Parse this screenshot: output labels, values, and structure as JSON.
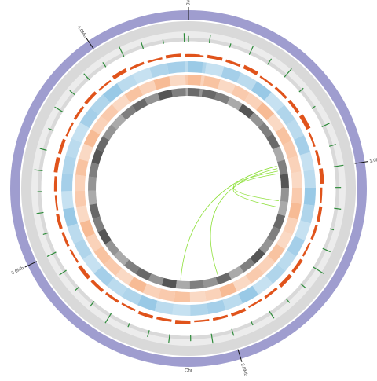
{
  "chart_data": {
    "type": "circos",
    "chromosome_label": "Chr",
    "xlim": [
      0,
      4.42
    ],
    "xticks": [
      {
        "value": 0,
        "label": "0Mb"
      },
      {
        "value": 1,
        "label": "1.0Mb"
      },
      {
        "value": 2,
        "label": "2.0Mb"
      },
      {
        "value": 3,
        "label": "3.0Mb"
      },
      {
        "value": 4,
        "label": "4.0Mb"
      }
    ],
    "ring_color": "#9f9dcf",
    "ylim": [
      0,
      1
    ],
    "x": [
      0,
      0.1,
      0.2,
      0.3,
      0.4,
      0.5,
      0.6,
      0.7,
      0.8,
      0.9,
      1.0,
      1.1,
      1.2,
      1.3,
      1.4,
      1.5,
      1.6,
      1.7,
      1.8,
      1.9,
      2.0,
      2.1,
      2.2,
      2.3,
      2.4,
      2.5,
      2.6,
      2.7,
      2.8,
      2.9,
      3.0,
      3.1,
      3.2,
      3.3,
      3.4,
      3.5,
      3.6,
      3.7,
      3.8,
      3.9,
      4.0,
      4.1,
      4.2,
      4.3,
      4.4
    ],
    "series": [
      {
        "color": "#2e8b3a",
        "values": [
          0.4,
          0.6,
          0.3,
          0.7,
          0.5,
          0.8,
          0.4,
          0.3,
          0.6,
          0.5,
          0.7,
          0.4,
          0.5,
          0.3,
          0.6,
          0.9,
          0.5,
          0.4,
          0.6,
          0.3,
          0.5,
          0.7,
          0.4,
          0.6,
          0.5,
          0.3,
          0.8,
          0.5,
          0.4,
          0.6,
          0.7,
          0.4,
          0.5,
          0.3,
          0.6,
          0.5,
          0.4,
          0.7,
          0.5,
          0.6,
          0.4,
          0.8,
          0.5,
          0.3,
          0.6
        ]
      },
      {
        "color": "#e0531b",
        "values": [
          0.3,
          0.5,
          0.4,
          0.6,
          0.3,
          0.4,
          0.5,
          0.7,
          0.3,
          0.4,
          0.6,
          0.3,
          0.5,
          0.4,
          0.3,
          0.5,
          0.6,
          0.4,
          0.3,
          0.5,
          0.4,
          0.3,
          0.6,
          0.4,
          0.5,
          0.3,
          0.4,
          0.5,
          0.6,
          0.3,
          0.4,
          0.5,
          0.3,
          0.4,
          0.6,
          0.5,
          0.3,
          0.4,
          0.5,
          0.3,
          0.6,
          0.4,
          0.3,
          0.5,
          0.4
        ]
      },
      {
        "color": "#8ec3e3",
        "values": [
          0.7,
          0.5,
          0.8,
          0.6,
          0.9,
          0.5,
          0.7,
          0.6,
          0.8,
          0.5,
          0.6,
          0.9,
          0.7,
          0.5,
          0.8,
          0.6,
          0.7,
          0.5,
          0.9,
          0.6,
          0.8,
          0.7,
          0.5,
          0.6,
          0.9,
          0.7,
          0.6,
          0.8,
          0.5,
          0.7,
          0.6,
          0.9,
          0.5,
          0.8,
          0.7,
          0.6,
          0.5,
          0.8,
          0.7,
          0.9,
          0.6,
          0.5,
          0.7,
          0.8,
          0.6
        ]
      },
      {
        "color": "#f6b48a",
        "values": [
          0.6,
          0.8,
          0.5,
          0.7,
          0.6,
          0.9,
          0.5,
          0.8,
          0.7,
          0.6,
          0.5,
          0.7,
          0.9,
          0.6,
          0.5,
          0.8,
          0.6,
          0.7,
          0.5,
          0.9,
          0.6,
          0.5,
          0.8,
          0.7,
          0.6,
          0.9,
          0.5,
          0.7,
          0.8,
          0.6,
          0.9,
          0.5,
          0.7,
          0.6,
          0.8,
          0.5,
          0.9,
          0.6,
          0.7,
          0.5,
          0.8,
          0.6,
          0.9,
          0.5,
          0.7
        ]
      },
      {
        "color": "#2a2a2a",
        "values": [
          0.5,
          0.7,
          0.6,
          0.4,
          0.8,
          0.5,
          0.6,
          0.7,
          0.4,
          0.6,
          0.8,
          0.5,
          0.4,
          0.7,
          0.6,
          0.5,
          0.8,
          0.6,
          0.4,
          0.7,
          0.5,
          0.6,
          0.4,
          0.8,
          0.5,
          0.7,
          0.6,
          0.4,
          0.5,
          0.8,
          0.6,
          0.7,
          0.4,
          0.5,
          0.6,
          0.8,
          0.7,
          0.5,
          0.4,
          0.6,
          0.7,
          0.5,
          0.8,
          0.6,
          0.4
        ]
      }
    ],
    "link_color": "#8ee03a",
    "links": [
      {
        "source": 0.93,
        "target": 2.27
      },
      {
        "source": 0.95,
        "target": 1.98
      },
      {
        "source": 0.97,
        "target": 1.2
      },
      {
        "source": 0.99,
        "target": 1.25
      }
    ]
  }
}
